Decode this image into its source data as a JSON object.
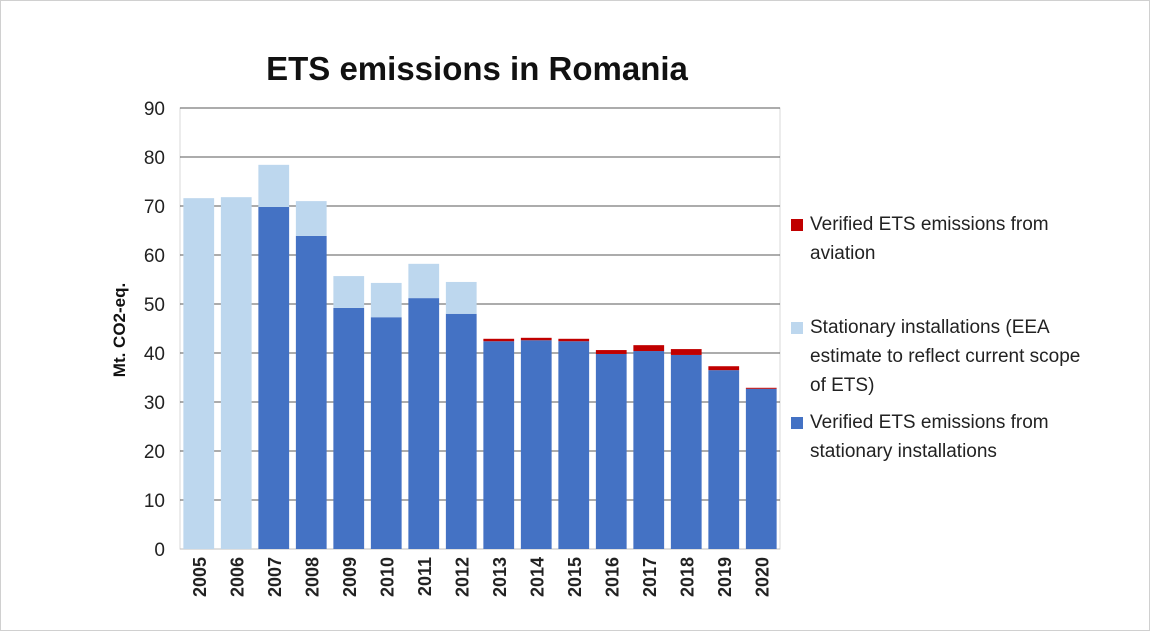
{
  "chart_data": {
    "type": "stacked_bar",
    "title": "ETS emissions in Romania",
    "y_label": "Mt. CO2-eq.",
    "categories": [
      "2005",
      "2006",
      "2007",
      "2008",
      "2009",
      "2010",
      "2011",
      "2012",
      "2013",
      "2014",
      "2015",
      "2016",
      "2017",
      "2018",
      "2019",
      "2020"
    ],
    "series": [
      {
        "name": "Verified ETS emissions from stationary installations",
        "color": "#4472c4",
        "values": [
          0,
          0,
          69.8,
          63.9,
          49.2,
          47.3,
          51.2,
          48.0,
          42.4,
          42.6,
          42.4,
          39.8,
          40.4,
          39.6,
          36.5,
          32.7
        ]
      },
      {
        "name": "Stationary installations (EEA estimate to reflect current scope of ETS)",
        "color": "#bdd7ee",
        "values": [
          71.6,
          71.8,
          8.6,
          7.1,
          6.5,
          7.0,
          7.0,
          6.5,
          0,
          0,
          0,
          0,
          0,
          0,
          0,
          0
        ]
      },
      {
        "name": "Verified ETS emissions from aviation",
        "color": "#c00000",
        "values": [
          0,
          0,
          0,
          0,
          0,
          0,
          0,
          0,
          0.5,
          0.5,
          0.5,
          0.8,
          1.2,
          1.2,
          0.8,
          0.2
        ]
      }
    ],
    "ylim": [
      0,
      90
    ],
    "yticks": [
      0,
      10,
      20,
      30,
      40,
      50,
      60,
      70,
      80,
      90
    ],
    "grid": true,
    "legend": "right"
  }
}
